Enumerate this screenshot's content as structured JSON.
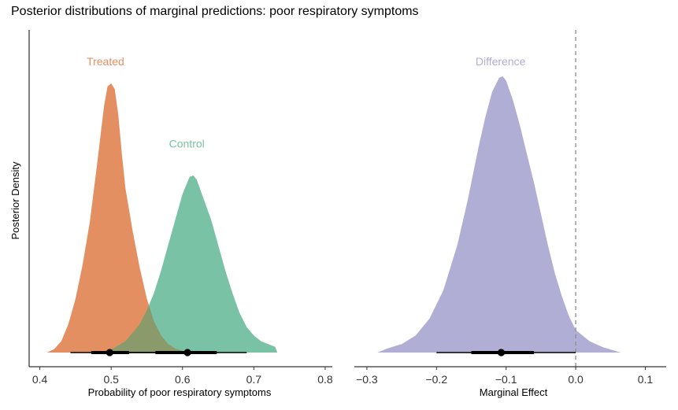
{
  "title": "Posterior distributions of marginal predictions: poor respiratory symptoms",
  "chart_data": [
    {
      "type": "area",
      "panel": "left",
      "xlabel": "Probability of poor respiratory symptoms",
      "ylabel": "Posterior Density",
      "xlim": [
        0.385,
        0.81
      ],
      "xticks": [
        0.4,
        0.5,
        0.6,
        0.7,
        0.8
      ],
      "ylim": [
        0,
        1
      ],
      "grid": false,
      "legend": "none",
      "series": [
        {
          "name": "Treated",
          "color": "#e48f62",
          "label_x": 0.492,
          "label_y": 1.0,
          "density": [
            [
              0.41,
              0.0
            ],
            [
              0.42,
              0.012
            ],
            [
              0.43,
              0.04
            ],
            [
              0.44,
              0.1
            ],
            [
              0.45,
              0.19
            ],
            [
              0.46,
              0.31
            ],
            [
              0.47,
              0.46
            ],
            [
              0.48,
              0.66
            ],
            [
              0.49,
              0.87
            ],
            [
              0.495,
              0.94
            ],
            [
              0.5,
              0.95
            ],
            [
              0.505,
              0.93
            ],
            [
              0.51,
              0.84
            ],
            [
              0.515,
              0.7
            ],
            [
              0.52,
              0.58
            ],
            [
              0.53,
              0.43
            ],
            [
              0.54,
              0.3
            ],
            [
              0.55,
              0.19
            ],
            [
              0.56,
              0.11
            ],
            [
              0.57,
              0.06
            ],
            [
              0.58,
              0.03
            ],
            [
              0.59,
              0.014
            ],
            [
              0.6,
              0.006
            ],
            [
              0.61,
              0.0
            ]
          ],
          "interval": {
            "point": 0.498,
            "inner": [
              0.472,
              0.525
            ],
            "outer": [
              0.443,
              0.562
            ]
          }
        },
        {
          "name": "Control",
          "color": "#79c2a5",
          "label_x": 0.606,
          "label_y": 0.71,
          "density": [
            [
              0.48,
              0.0
            ],
            [
              0.5,
              0.01
            ],
            [
              0.52,
              0.04
            ],
            [
              0.54,
              0.1
            ],
            [
              0.55,
              0.15
            ],
            [
              0.56,
              0.21
            ],
            [
              0.57,
              0.29
            ],
            [
              0.58,
              0.38
            ],
            [
              0.59,
              0.47
            ],
            [
              0.6,
              0.56
            ],
            [
              0.61,
              0.62
            ],
            [
              0.615,
              0.625
            ],
            [
              0.62,
              0.61
            ],
            [
              0.63,
              0.54
            ],
            [
              0.64,
              0.47
            ],
            [
              0.65,
              0.38
            ],
            [
              0.66,
              0.29
            ],
            [
              0.67,
              0.21
            ],
            [
              0.68,
              0.14
            ],
            [
              0.69,
              0.09
            ],
            [
              0.7,
              0.06
            ],
            [
              0.71,
              0.04
            ],
            [
              0.72,
              0.03
            ],
            [
              0.73,
              0.02
            ],
            [
              0.733,
              0.0
            ]
          ],
          "interval": {
            "point": 0.607,
            "inner": [
              0.562,
              0.648
            ],
            "outer": [
              0.525,
              0.69
            ]
          }
        }
      ],
      "overlap_color": "#8a9a6a"
    },
    {
      "type": "area",
      "panel": "right",
      "xlabel": "Marginal Effect",
      "ylabel": "",
      "xlim": [
        -0.318,
        0.13
      ],
      "xticks": [
        -0.3,
        -0.2,
        -0.1,
        0.0,
        0.1
      ],
      "ylim": [
        0,
        1
      ],
      "grid": false,
      "legend": "none",
      "reference_line": 0.0,
      "series": [
        {
          "name": "Difference",
          "color": "#b0aed4",
          "label_x": -0.108,
          "label_y": 1.0,
          "density": [
            [
              -0.285,
              0.0
            ],
            [
              -0.27,
              0.015
            ],
            [
              -0.25,
              0.03
            ],
            [
              -0.23,
              0.06
            ],
            [
              -0.21,
              0.12
            ],
            [
              -0.19,
              0.22
            ],
            [
              -0.17,
              0.38
            ],
            [
              -0.155,
              0.54
            ],
            [
              -0.14,
              0.72
            ],
            [
              -0.13,
              0.83
            ],
            [
              -0.12,
              0.92
            ],
            [
              -0.11,
              0.97
            ],
            [
              -0.105,
              0.975
            ],
            [
              -0.1,
              0.96
            ],
            [
              -0.09,
              0.89
            ],
            [
              -0.08,
              0.8
            ],
            [
              -0.07,
              0.7
            ],
            [
              -0.06,
              0.6
            ],
            [
              -0.05,
              0.49
            ],
            [
              -0.04,
              0.38
            ],
            [
              -0.03,
              0.28
            ],
            [
              -0.02,
              0.2
            ],
            [
              -0.01,
              0.13
            ],
            [
              0.0,
              0.08
            ],
            [
              0.02,
              0.04
            ],
            [
              0.04,
              0.018
            ],
            [
              0.065,
              0.0
            ]
          ],
          "interval": {
            "point": -0.107,
            "inner": [
              -0.15,
              -0.06
            ],
            "outer": [
              -0.2,
              0.0
            ]
          }
        }
      ]
    }
  ]
}
